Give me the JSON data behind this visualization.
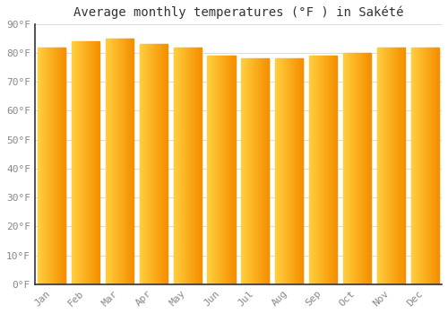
{
  "title": "Average monthly temperatures (°F ) in Sakété",
  "months": [
    "Jan",
    "Feb",
    "Mar",
    "Apr",
    "May",
    "Jun",
    "Jul",
    "Aug",
    "Sep",
    "Oct",
    "Nov",
    "Dec"
  ],
  "values": [
    82,
    84,
    85,
    83,
    82,
    79,
    78,
    78,
    79,
    80,
    82,
    82
  ],
  "background_color": "#FFFFFF",
  "grid_color": "#DDDDDD",
  "bar_color_left": "#FFD040",
  "bar_color_right": "#F59000",
  "ylim": [
    0,
    90
  ],
  "yticks": [
    0,
    10,
    20,
    30,
    40,
    50,
    60,
    70,
    80,
    90
  ],
  "ytick_labels": [
    "0°F",
    "10°F",
    "20°F",
    "30°F",
    "40°F",
    "50°F",
    "60°F",
    "70°F",
    "80°F",
    "90°F"
  ],
  "title_fontsize": 10,
  "tick_fontsize": 8,
  "tick_color": "#888888",
  "spine_color": "#333333",
  "font_family": "monospace",
  "bar_width": 0.82
}
